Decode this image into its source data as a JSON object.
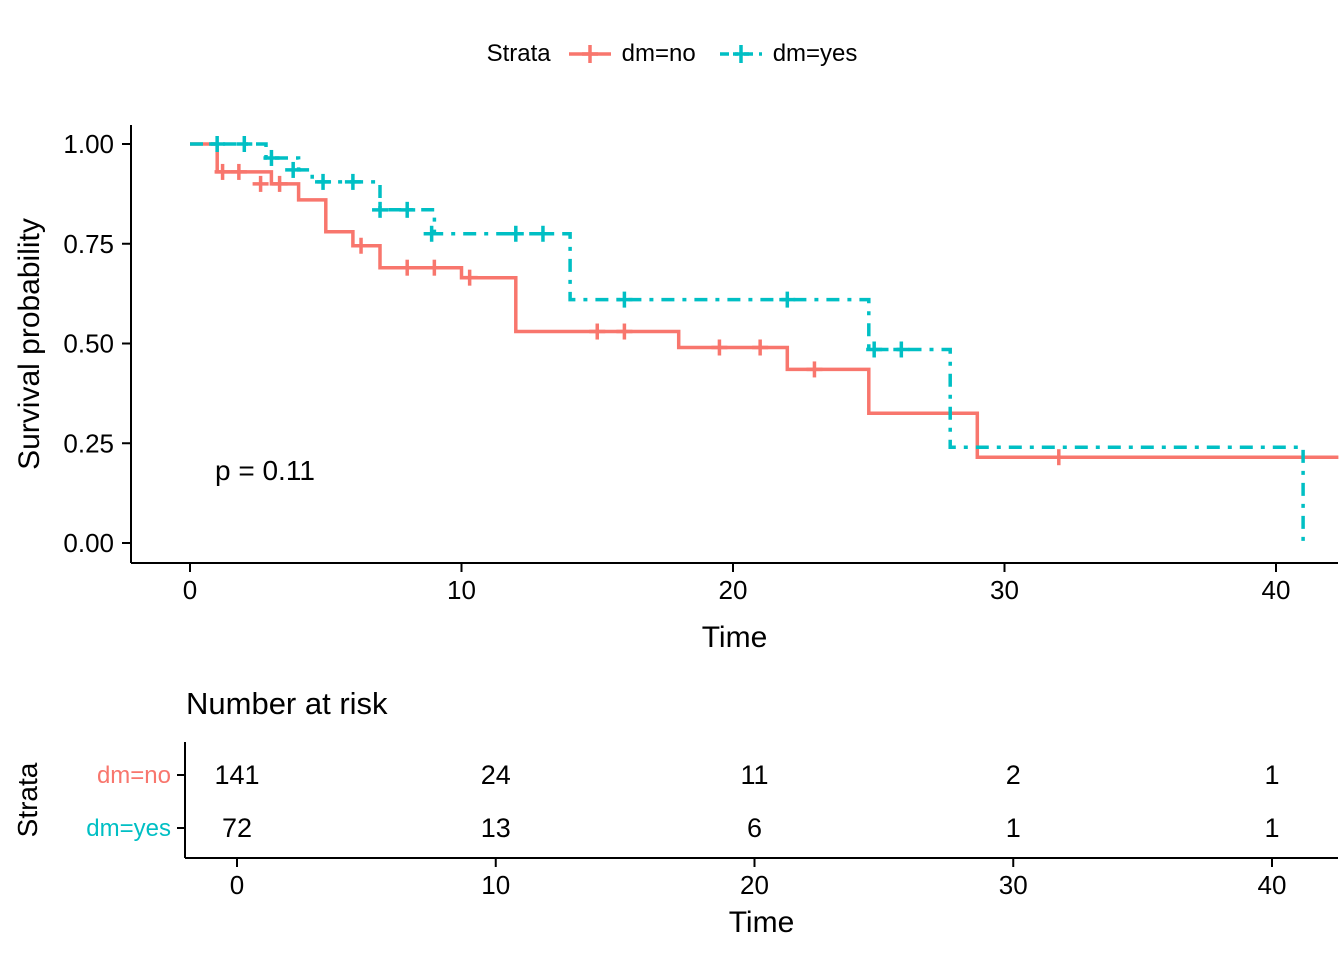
{
  "figure": {
    "background": "#FFFFFF"
  },
  "chart_data": {
    "type": "line",
    "subtype": "kaplan_meier_step",
    "title": "",
    "xlabel": "Time",
    "ylabel": "Survival probability",
    "xlim": [
      0,
      42.3
    ],
    "xticks": [
      0,
      10,
      20,
      30,
      40
    ],
    "ylim": [
      0,
      1
    ],
    "yticks": [
      "0.00",
      "0.25",
      "0.50",
      "0.75",
      "1.00"
    ],
    "grid": "off",
    "legend_title": "Strata",
    "legend_position": "top",
    "pvalue_annotation": "p = 0.11",
    "series": [
      {
        "name": "dm=no",
        "color": "#F8766D",
        "linestyle": "solid",
        "steps": [
          [
            0,
            1.0
          ],
          [
            1,
            0.93
          ],
          [
            3,
            0.9
          ],
          [
            4,
            0.86
          ],
          [
            5,
            0.78
          ],
          [
            6,
            0.745
          ],
          [
            7,
            0.69
          ],
          [
            10,
            0.665
          ],
          [
            12,
            0.53
          ],
          [
            18,
            0.49
          ],
          [
            22,
            0.435
          ],
          [
            25,
            0.325
          ],
          [
            29,
            0.215
          ]
        ],
        "end_time": 42.3,
        "drop_to_zero_at_end": false,
        "censor_marks": [
          [
            1.2,
            0.93
          ],
          [
            1.8,
            0.93
          ],
          [
            2.6,
            0.9
          ],
          [
            3.3,
            0.9
          ],
          [
            6.3,
            0.745
          ],
          [
            8,
            0.69
          ],
          [
            9,
            0.69
          ],
          [
            10.3,
            0.665
          ],
          [
            15,
            0.53
          ],
          [
            16,
            0.53
          ],
          [
            19.5,
            0.49
          ],
          [
            21,
            0.49
          ],
          [
            23,
            0.435
          ],
          [
            32,
            0.215
          ]
        ]
      },
      {
        "name": "dm=yes",
        "color": "#00BFC4",
        "linestyle": "dashdot",
        "steps": [
          [
            0,
            1.0
          ],
          [
            2.8,
            0.965
          ],
          [
            4,
            0.935
          ],
          [
            4.5,
            0.905
          ],
          [
            7,
            0.835
          ],
          [
            9,
            0.775
          ],
          [
            14,
            0.61
          ],
          [
            25,
            0.485
          ],
          [
            28,
            0.24
          ]
        ],
        "end_time": 41,
        "drop_to_zero_at_end": true,
        "censor_marks": [
          [
            1,
            1.0
          ],
          [
            2,
            1.0
          ],
          [
            3,
            0.965
          ],
          [
            3.8,
            0.935
          ],
          [
            4.9,
            0.905
          ],
          [
            6,
            0.905
          ],
          [
            7,
            0.835
          ],
          [
            8,
            0.835
          ],
          [
            8.9,
            0.775
          ],
          [
            12,
            0.775
          ],
          [
            13,
            0.775
          ],
          [
            16,
            0.61
          ],
          [
            22,
            0.61
          ],
          [
            25.2,
            0.485
          ],
          [
            26.2,
            0.485
          ]
        ]
      }
    ]
  },
  "risk_table": {
    "title": "Number at risk",
    "ylabel": "Strata",
    "xlabel": "Time",
    "times": [
      0,
      10,
      20,
      30,
      40
    ],
    "rows": [
      {
        "name": "dm=no",
        "color": "#F8766D",
        "counts": [
          141,
          24,
          11,
          2,
          1
        ]
      },
      {
        "name": "dm=yes",
        "color": "#00BFC4",
        "counts": [
          72,
          13,
          6,
          1,
          1
        ]
      }
    ]
  }
}
